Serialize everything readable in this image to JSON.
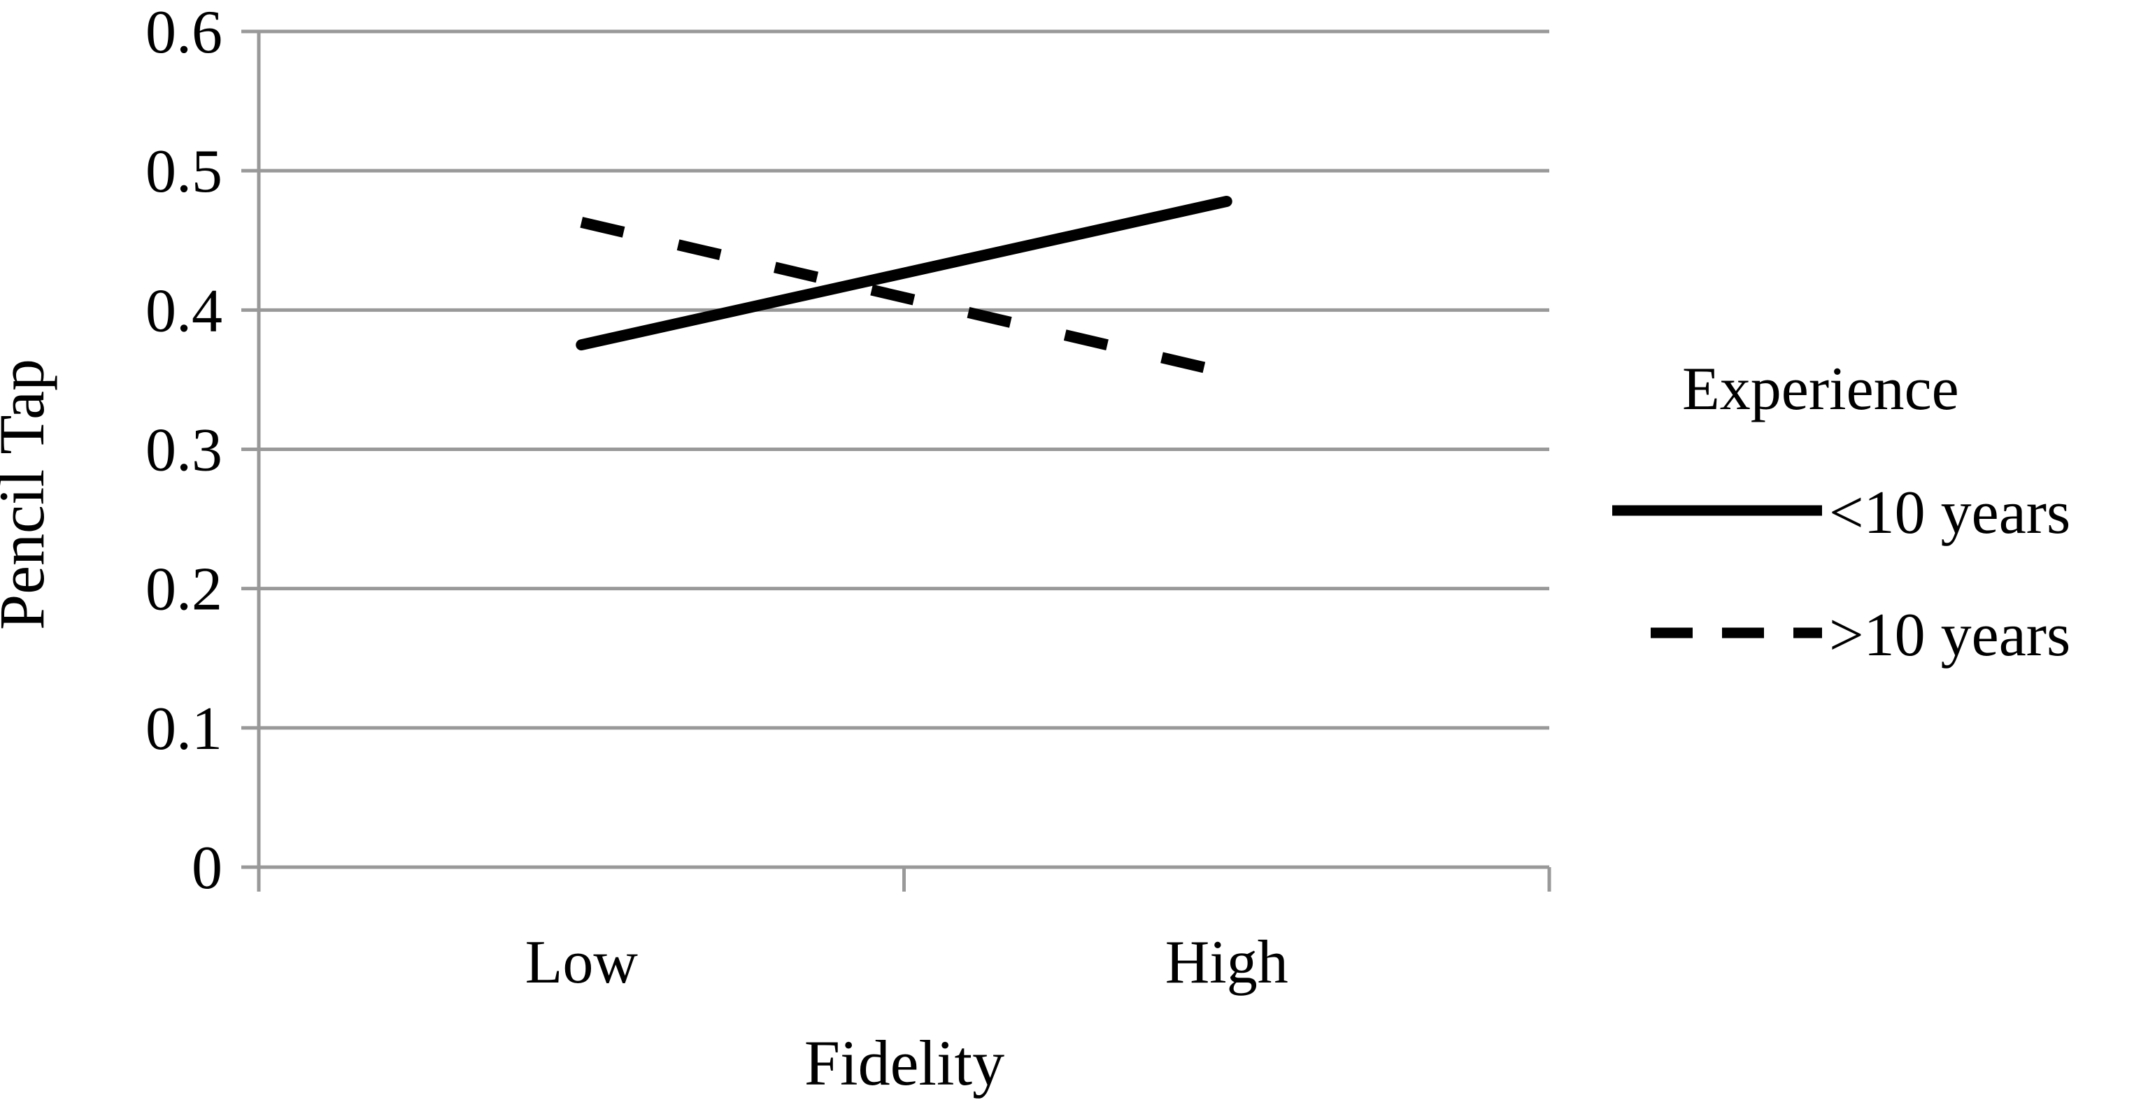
{
  "chart_data": {
    "type": "line",
    "categories": [
      "Low",
      "High"
    ],
    "series": [
      {
        "name": "<10 years",
        "values": [
          0.375,
          0.478
        ],
        "style": "solid",
        "color": "#000000"
      },
      {
        "name": ">10 years",
        "values": [
          0.463,
          0.355
        ],
        "style": "dashed",
        "color": "#000000"
      }
    ],
    "title": "",
    "xlabel": "Fidelity",
    "ylabel": "Pencil Tap",
    "ylim": [
      0,
      0.6
    ],
    "yticks": [
      0,
      0.1,
      0.2,
      0.3,
      0.4,
      0.5,
      0.6
    ],
    "ytick_labels": [
      "0",
      "0.1",
      "0.2",
      "0.3",
      "0.4",
      "0.5",
      "0.6"
    ],
    "grid": true,
    "gridline_color": "#999999",
    "legend": {
      "title": "Experience",
      "placement": "right"
    }
  }
}
